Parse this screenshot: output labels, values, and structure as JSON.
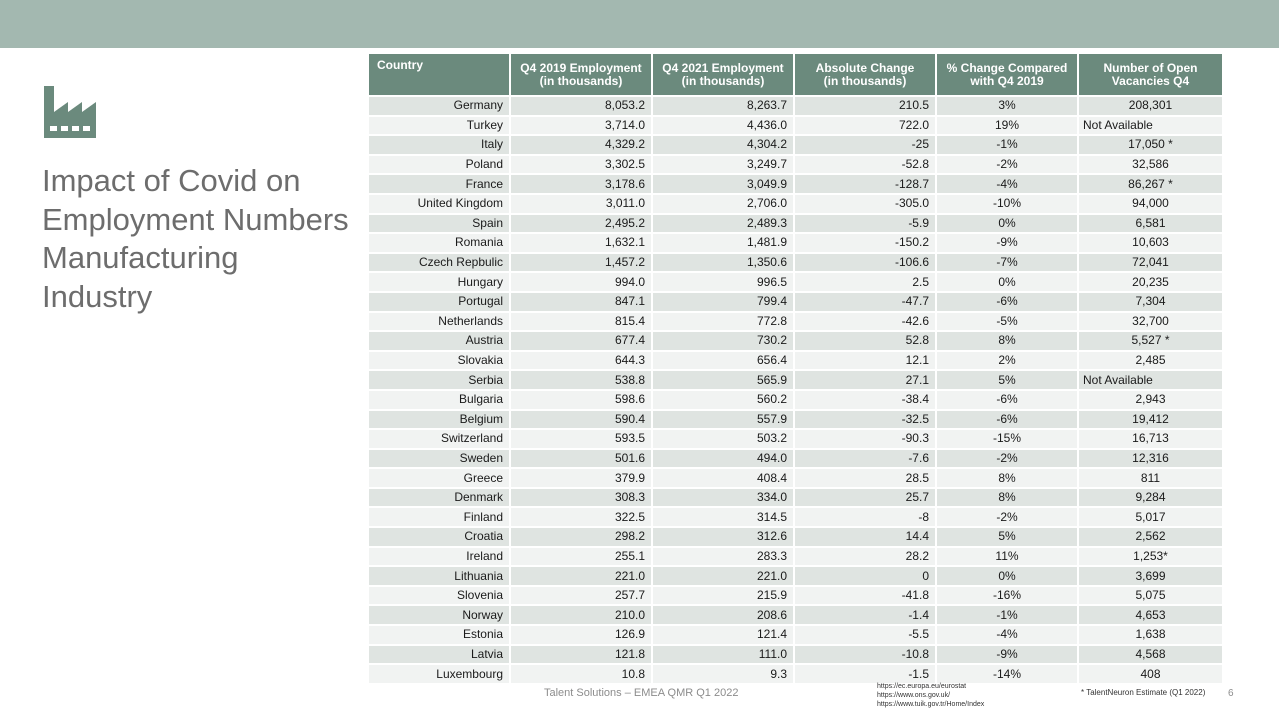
{
  "slide": {
    "title_lines": [
      "Impact of Covid on",
      "Employment Numbers",
      "Manufacturing",
      "Industry"
    ],
    "icon": "factory-icon",
    "colors": {
      "topbar": "#a3b8b0",
      "header": "#6b8a7d",
      "row_odd": "#dfe4e1",
      "row_even": "#f1f3f2",
      "icon": "#6b8a7d"
    }
  },
  "table": {
    "headers": {
      "country": "Country",
      "q4_2019": [
        "Q4 2019 Employment",
        "(in thousands)"
      ],
      "q4_2021": [
        "Q4 2021 Employment",
        "(in thousands)"
      ],
      "abs_change": [
        "Absolute Change",
        "(in thousands)"
      ],
      "pct_change": [
        "% Change Compared",
        "with Q4 2019"
      ],
      "vacancies": [
        "Number of Open",
        "Vacancies Q4"
      ]
    },
    "rows": [
      {
        "country": "Germany",
        "q4_2019": "8,053.2",
        "q4_2021": "8,263.7",
        "abs": "210.5",
        "pct": "3%",
        "vac": "208,301"
      },
      {
        "country": "Turkey",
        "q4_2019": "3,714.0",
        "q4_2021": "4,436.0",
        "abs": "722.0",
        "pct": "19%",
        "vac": "Not Available"
      },
      {
        "country": "Italy",
        "q4_2019": "4,329.2",
        "q4_2021": "4,304.2",
        "abs": "-25",
        "pct": "-1%",
        "vac": "17,050 *"
      },
      {
        "country": "Poland",
        "q4_2019": "3,302.5",
        "q4_2021": "3,249.7",
        "abs": "-52.8",
        "pct": "-2%",
        "vac": "32,586"
      },
      {
        "country": "France",
        "q4_2019": "3,178.6",
        "q4_2021": "3,049.9",
        "abs": "-128.7",
        "pct": "-4%",
        "vac": "86,267 *"
      },
      {
        "country": "United Kingdom",
        "q4_2019": "3,011.0",
        "q4_2021": "2,706.0",
        "abs": "-305.0",
        "pct": "-10%",
        "vac": "94,000"
      },
      {
        "country": "Spain",
        "q4_2019": "2,495.2",
        "q4_2021": "2,489.3",
        "abs": "-5.9",
        "pct": "0%",
        "vac": "6,581"
      },
      {
        "country": "Romania",
        "q4_2019": "1,632.1",
        "q4_2021": "1,481.9",
        "abs": "-150.2",
        "pct": "-9%",
        "vac": "10,603"
      },
      {
        "country": "Czech Repbulic",
        "q4_2019": "1,457.2",
        "q4_2021": "1,350.6",
        "abs": "-106.6",
        "pct": "-7%",
        "vac": "72,041"
      },
      {
        "country": "Hungary",
        "q4_2019": "994.0",
        "q4_2021": "996.5",
        "abs": "2.5",
        "pct": "0%",
        "vac": "20,235"
      },
      {
        "country": "Portugal",
        "q4_2019": "847.1",
        "q4_2021": "799.4",
        "abs": "-47.7",
        "pct": "-6%",
        "vac": "7,304"
      },
      {
        "country": "Netherlands",
        "q4_2019": "815.4",
        "q4_2021": "772.8",
        "abs": "-42.6",
        "pct": "-5%",
        "vac": "32,700"
      },
      {
        "country": "Austria",
        "q4_2019": "677.4",
        "q4_2021": "730.2",
        "abs": "52.8",
        "pct": "8%",
        "vac": "5,527 *"
      },
      {
        "country": "Slovakia",
        "q4_2019": "644.3",
        "q4_2021": "656.4",
        "abs": "12.1",
        "pct": "2%",
        "vac": "2,485"
      },
      {
        "country": "Serbia",
        "q4_2019": "538.8",
        "q4_2021": "565.9",
        "abs": "27.1",
        "pct": "5%",
        "vac": "Not Available"
      },
      {
        "country": "Bulgaria",
        "q4_2019": "598.6",
        "q4_2021": "560.2",
        "abs": "-38.4",
        "pct": "-6%",
        "vac": "2,943"
      },
      {
        "country": "Belgium",
        "q4_2019": "590.4",
        "q4_2021": "557.9",
        "abs": "-32.5",
        "pct": "-6%",
        "vac": "19,412"
      },
      {
        "country": "Switzerland",
        "q4_2019": "593.5",
        "q4_2021": "503.2",
        "abs": "-90.3",
        "pct": "-15%",
        "vac": "16,713"
      },
      {
        "country": "Sweden",
        "q4_2019": "501.6",
        "q4_2021": "494.0",
        "abs": "-7.6",
        "pct": "-2%",
        "vac": "12,316"
      },
      {
        "country": "Greece",
        "q4_2019": "379.9",
        "q4_2021": "408.4",
        "abs": "28.5",
        "pct": "8%",
        "vac": "811"
      },
      {
        "country": "Denmark",
        "q4_2019": "308.3",
        "q4_2021": "334.0",
        "abs": "25.7",
        "pct": "8%",
        "vac": "9,284"
      },
      {
        "country": "Finland",
        "q4_2019": "322.5",
        "q4_2021": "314.5",
        "abs": "-8",
        "pct": "-2%",
        "vac": "5,017"
      },
      {
        "country": "Croatia",
        "q4_2019": "298.2",
        "q4_2021": "312.6",
        "abs": "14.4",
        "pct": "5%",
        "vac": "2,562"
      },
      {
        "country": "Ireland",
        "q4_2019": "255.1",
        "q4_2021": "283.3",
        "abs": "28.2",
        "pct": "11%",
        "vac": "1,253*"
      },
      {
        "country": "Lithuania",
        "q4_2019": "221.0",
        "q4_2021": "221.0",
        "abs": "0",
        "pct": "0%",
        "vac": "3,699"
      },
      {
        "country": "Slovenia",
        "q4_2019": "257.7",
        "q4_2021": "215.9",
        "abs": "-41.8",
        "pct": "-16%",
        "vac": "5,075"
      },
      {
        "country": "Norway",
        "q4_2019": "210.0",
        "q4_2021": "208.6",
        "abs": "-1.4",
        "pct": "-1%",
        "vac": "4,653"
      },
      {
        "country": "Estonia",
        "q4_2019": "126.9",
        "q4_2021": "121.4",
        "abs": "-5.5",
        "pct": "-4%",
        "vac": "1,638"
      },
      {
        "country": "Latvia",
        "q4_2019": "121.8",
        "q4_2021": "111.0",
        "abs": "-10.8",
        "pct": "-9%",
        "vac": "4,568"
      },
      {
        "country": "Luxembourg",
        "q4_2019": "10.8",
        "q4_2021": "9.3",
        "abs": "-1.5",
        "pct": "-14%",
        "vac": "408"
      }
    ]
  },
  "footer": {
    "center_text": "Talent Solutions – EMEA QMR Q1 2022",
    "sources": [
      "https://ec.europa.eu/eurostat",
      "https://www.ons.gov.uk/",
      "https://www.tuik.gov.tr/Home/Index"
    ],
    "note": "* TalentNeuron Estimate (Q1 2022)",
    "page_number": "6"
  }
}
